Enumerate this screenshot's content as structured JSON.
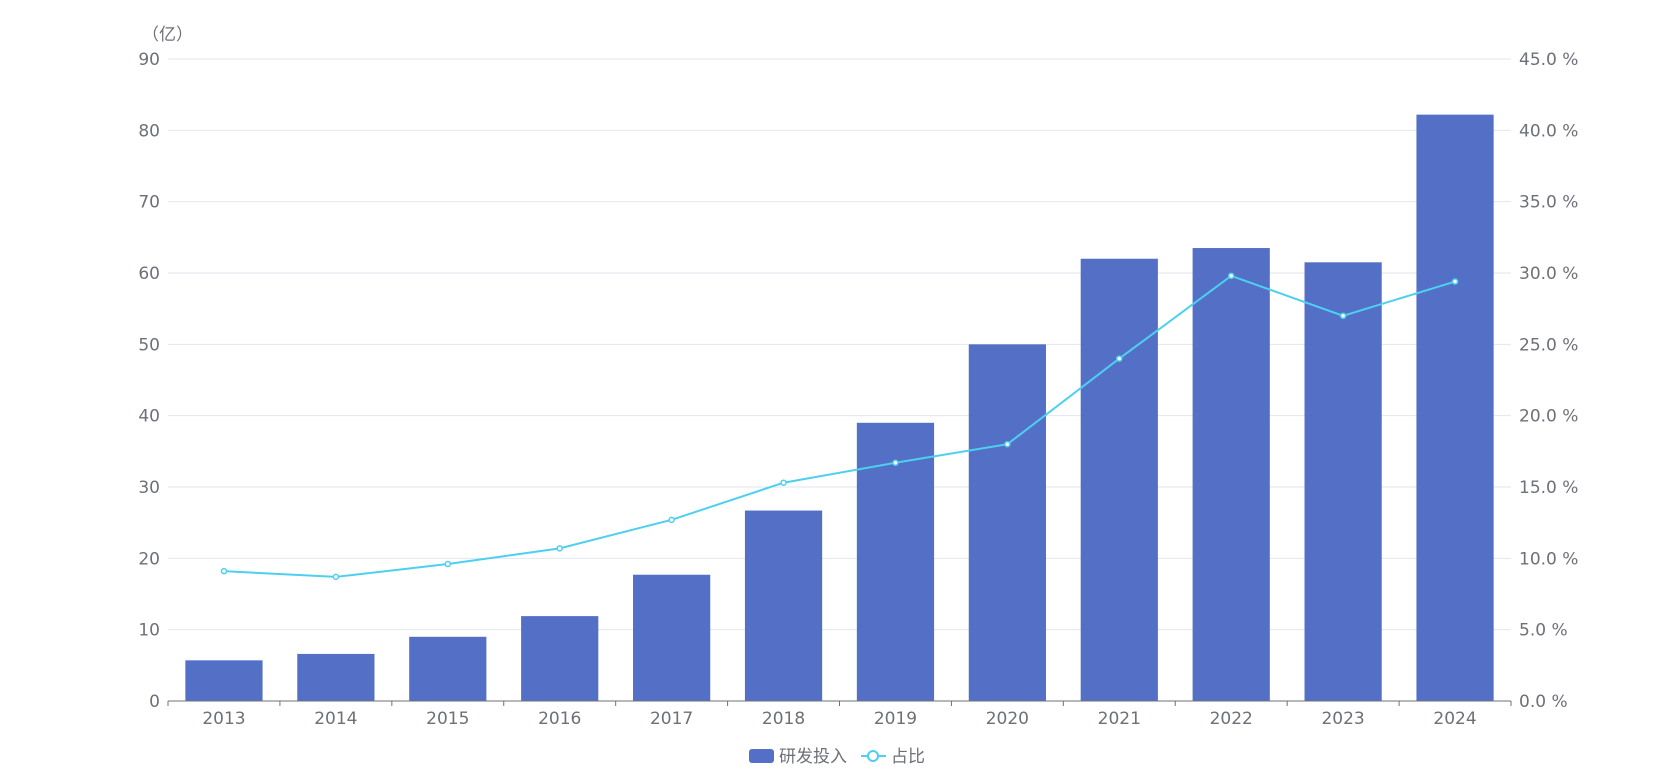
{
  "chart_data": {
    "type": "bar+line",
    "categories": [
      "2013",
      "2014",
      "2015",
      "2016",
      "2017",
      "2018",
      "2019",
      "2020",
      "2021",
      "2022",
      "2023",
      "2024"
    ],
    "series": [
      {
        "name": "研发投入",
        "type": "bar",
        "axis": "left",
        "color": "#5470c6",
        "values": [
          5.7,
          6.6,
          9.0,
          11.9,
          17.7,
          26.7,
          39.0,
          50.0,
          62.0,
          63.5,
          61.5,
          82.2
        ]
      },
      {
        "name": "占比",
        "type": "line",
        "axis": "right",
        "color": "#4dd0f0",
        "values": [
          9.1,
          8.7,
          9.6,
          10.7,
          12.7,
          15.3,
          16.7,
          18.0,
          24.0,
          29.8,
          27.0,
          29.4
        ]
      }
    ],
    "y_left": {
      "unit_label": "（亿）",
      "range": [
        0,
        90
      ],
      "ticks": [
        "0",
        "10",
        "20",
        "30",
        "40",
        "50",
        "60",
        "70",
        "80",
        "90"
      ]
    },
    "y_right": {
      "range": [
        0,
        45
      ],
      "ticks": [
        "0.0 %",
        "5.0 %",
        "10.0 %",
        "15.0 %",
        "20.0 %",
        "25.0 %",
        "30.0 %",
        "35.0 %",
        "40.0 %",
        "45.0 %"
      ]
    },
    "grid": true,
    "legend_position": "bottom"
  }
}
